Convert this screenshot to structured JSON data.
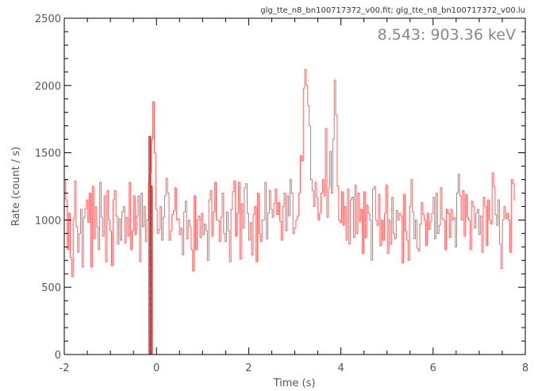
{
  "chart_data": {
    "type": "line",
    "step": true,
    "file_label": "glg_tte_n8_bn100717372_v00.fit; glg_tte_n8_bn100717372_v00.lu",
    "energy_label": "8.543: 903.36 keV",
    "xlabel": "Time (s)",
    "ylabel": "Rate (count / s)",
    "xlim": [
      -2,
      8
    ],
    "ylim": [
      0,
      2500
    ],
    "xticks": [
      "-2",
      "0",
      "2",
      "4",
      "6",
      "8"
    ],
    "yticks": [
      "0",
      "500",
      "1000",
      "1500",
      "2000",
      "2500"
    ],
    "bin_width": 0.032,
    "x_start": -2.0,
    "series": [
      {
        "color": "#ff6060",
        "values": [
          1300,
          1150,
          780,
          1050,
          720,
          580,
          1010,
          1290,
          950,
          760,
          900,
          1080,
          650,
          1020,
          1080,
          1150,
          980,
          1200,
          650,
          1250,
          860,
          1100,
          950,
          780,
          1280,
          1020,
          880,
          1180,
          690,
          1220,
          1000,
          920,
          660,
          1150,
          1220,
          1030,
          820,
          1010,
          850,
          1060,
          1100,
          830,
          1020,
          880,
          1280,
          780,
          920,
          1180,
          890,
          1030,
          1180,
          690,
          1200,
          950,
          1100,
          840,
          1000,
          1280,
          1350,
          1600,
          1880,
          1500,
          1080,
          900,
          930,
          1100,
          850,
          1020,
          1180,
          1310,
          1200,
          850,
          920,
          1040,
          1070,
          1240,
          1000,
          1010,
          890,
          940,
          740,
          1060,
          1140,
          860,
          1000,
          950,
          780,
          620,
          1180,
          780,
          1000,
          1030,
          870,
          1050,
          890,
          970,
          920,
          700,
          1150,
          1220,
          880,
          1060,
          1280,
          1000,
          1000,
          840,
          1020,
          1200,
          900,
          840,
          1060,
          920,
          690,
          1080,
          1210,
          1290,
          880,
          1050,
          1280,
          710,
          1120,
          940,
          1240,
          1270,
          1050,
          850,
          980,
          740,
          1040,
          1100,
          690,
          1200,
          900,
          840,
          1000,
          1000,
          1280,
          860,
          1050,
          1220,
          1080,
          1020,
          1120,
          1230,
          1040,
          1130,
          990,
          850,
          1100,
          1200,
          920,
          1180,
          1030,
          1300,
          1200,
          900,
          940,
          1000,
          1030,
          1200,
          1480,
          1440,
          1980,
          2120,
          2000,
          1850,
          1700,
          1300,
          1220,
          1100,
          1280,
          1170,
          1000,
          1050,
          1200,
          1300,
          1180,
          1680,
          1020,
          1240,
          1510,
          1200,
          1600,
          2040,
          1780,
          1250,
          1000,
          980,
          1210,
          960,
          1100,
          850,
          1230,
          820,
          1150,
          1170,
          870,
          1260,
          900,
          1200,
          990,
          1080,
          750,
          1210,
          870,
          1110,
          1050,
          1000,
          700,
          1230,
          1250,
          1000,
          960,
          1190,
          810,
          1000,
          850,
          1050,
          1260,
          750,
          1000,
          820,
          1170,
          900,
          860,
          1070,
          1000,
          1050,
          1030,
          680,
          1190,
          920,
          850,
          700,
          1100,
          1300,
          1060,
          860,
          1000,
          790,
          770,
          970,
          1130,
          1040,
          1000,
          810,
          1050,
          930,
          990,
          1050,
          1170,
          860,
          1200,
          900,
          960,
          1240,
          1010,
          1000,
          780,
          1080,
          1050,
          870,
          1080,
          1000,
          1020,
          800,
          1200,
          1340,
          1180,
          1000,
          1220,
          880,
          1190,
          1020,
          1000,
          780,
          1140,
          1100,
          940,
          1050,
          1080,
          890,
          1030,
          760,
          1170,
          1100,
          810,
          1150,
          1000,
          970,
          1350,
          1250,
          1040,
          960,
          1150,
          820,
          640,
          1000,
          1100,
          1010,
          1050,
          1000,
          760,
          1300,
          1270,
          1150
        ]
      }
    ],
    "highlight_bins": [
      {
        "x_start": -0.16,
        "value": 1620
      },
      {
        "x_start": -0.128,
        "value": 1250
      }
    ]
  }
}
